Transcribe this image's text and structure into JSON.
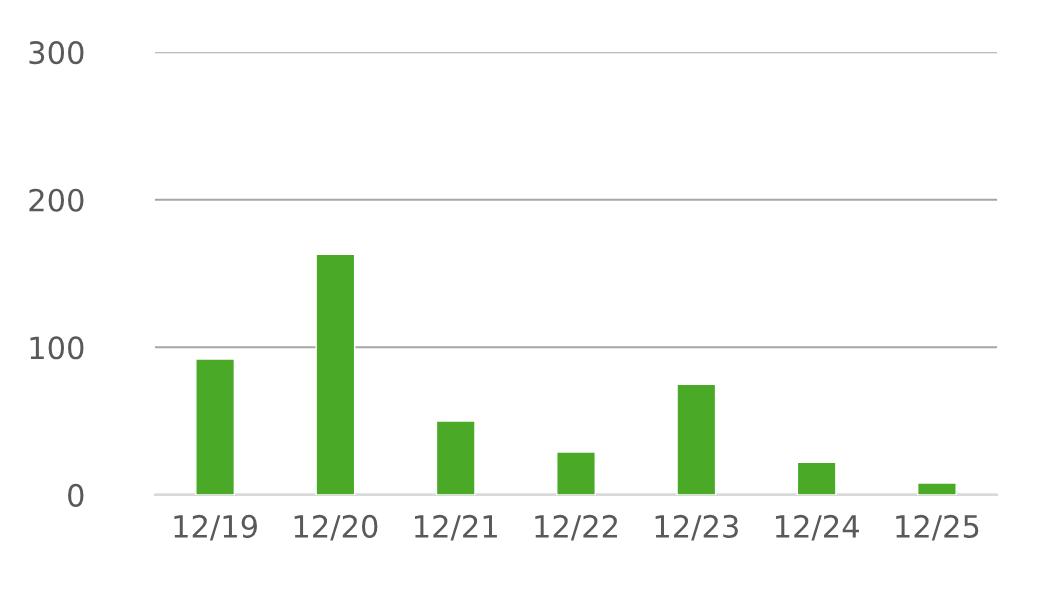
{
  "chart_data": {
    "type": "bar",
    "categories": [
      "12/19",
      "12/20",
      "12/21",
      "12/22",
      "12/23",
      "12/24",
      "12/25"
    ],
    "values": [
      92,
      163,
      50,
      29,
      75,
      22,
      8
    ],
    "color": "#4aa927",
    "ylim": [
      0,
      300
    ],
    "yticks": [
      0,
      100,
      200,
      300
    ],
    "grid": "y",
    "legend": false
  }
}
